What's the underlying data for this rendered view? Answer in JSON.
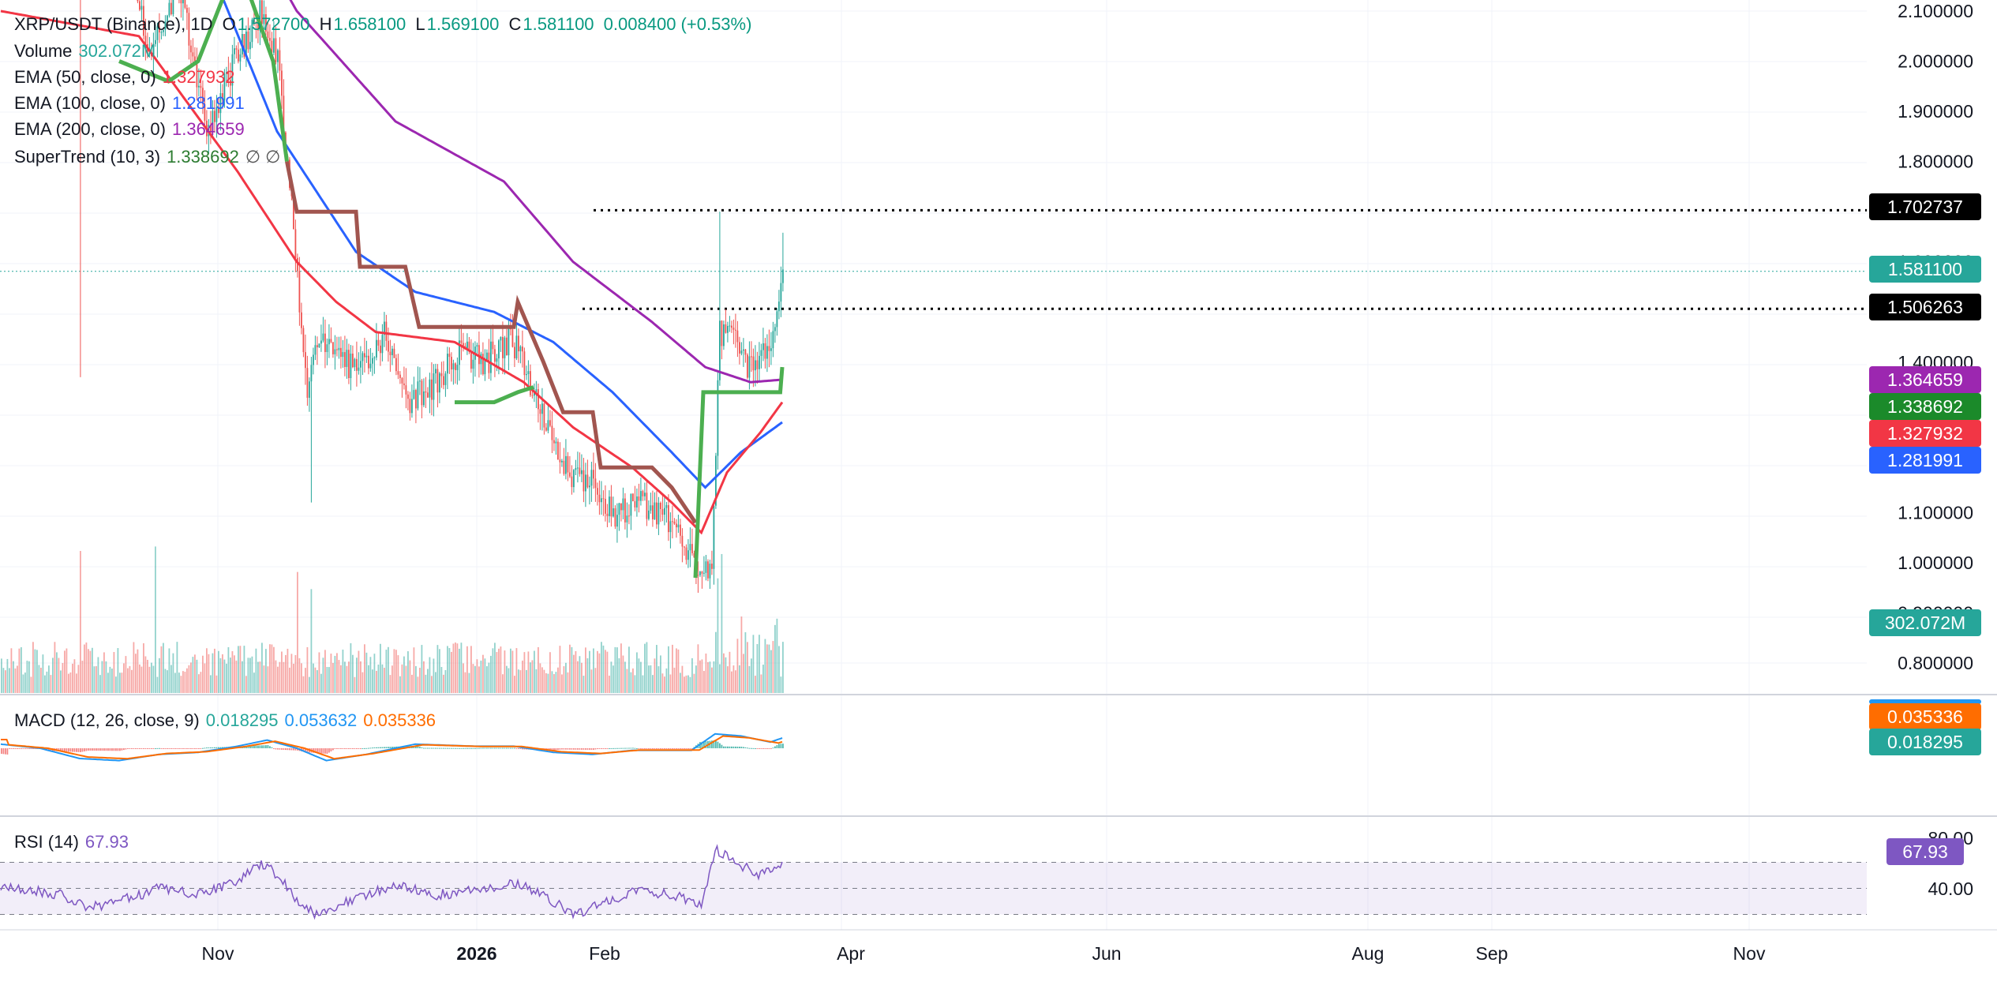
{
  "legend": {
    "symbol": "XRP/USDT (Binance), 1D",
    "open_label": "O",
    "open": "1.572700",
    "high_label": "H",
    "high": "1.658100",
    "low_label": "L",
    "low": "1.569100",
    "close_label": "C",
    "close": "1.581100",
    "change": "0.008400 (+0.53%)",
    "volume_label": "Volume",
    "volume": "302.072M",
    "ema50_label": "EMA (50, close, 0)",
    "ema50": "1.327932",
    "ema100_label": "EMA (100, close, 0)",
    "ema100": "1.281991",
    "ema200_label": "EMA (200, close, 0)",
    "ema200": "1.364659",
    "st_label": "SuperTrend (10, 3)",
    "st": "1.338692",
    "st_extra": "∅  ∅",
    "macd_label": "MACD (12, 26, close, 9)",
    "macd_hist": "0.018295",
    "macd_line": "0.053632",
    "macd_signal": "0.035336",
    "rsi_label": "RSI (14)",
    "rsi": "67.93"
  },
  "colors": {
    "up": "#26a69a",
    "down": "#ef5350",
    "ema50": "#f23645",
    "ema100": "#2962ff",
    "ema200": "#9c27b0",
    "st_up": "#4caf50",
    "st_down": "#a1554f",
    "macd": "#2196f3",
    "signal": "#ff6d00",
    "rsi": "#7e57c2"
  },
  "price_axis": {
    "ticks": [
      "2.100000",
      "2.000000",
      "1.900000",
      "1.800000",
      "1.600000",
      "1.400000",
      "1.100000",
      "1.000000",
      "0.900000",
      "0.800000"
    ]
  },
  "price_tags": {
    "resistance_high": "1.702737",
    "last_price": "1.581100",
    "resistance_low": "1.506263",
    "ema200": "1.364659",
    "supertrend": "1.338692",
    "ema50": "1.327932",
    "ema100": "1.281991",
    "volume": "302.072M",
    "macd_signal": "0.035336",
    "macd_hist": "0.018295",
    "rsi": "67.93"
  },
  "rsi_axis": {
    "ticks": [
      "80.00",
      "40.00"
    ]
  },
  "time_axis": {
    "labels": [
      "Nov",
      "2026",
      "Feb",
      "Apr",
      "Jun",
      "Aug",
      "Sep",
      "Nov"
    ]
  },
  "chart_data": {
    "type": "line",
    "title": "XRP/USDT (Binance), 1D",
    "price_ylim": [
      0.72,
      2.12
    ],
    "levels": [
      1.702737,
      1.506263
    ],
    "anchors_ema50": [
      [
        0,
        2.1
      ],
      [
        70,
        2.05
      ],
      [
        120,
        1.78
      ],
      [
        150,
        1.6
      ],
      [
        170,
        1.52
      ],
      [
        190,
        1.46
      ],
      [
        230,
        1.44
      ],
      [
        265,
        1.36
      ],
      [
        290,
        1.27
      ],
      [
        320,
        1.19
      ],
      [
        340,
        1.12
      ],
      [
        355,
        1.06
      ],
      [
        368,
        1.18
      ],
      [
        385,
        1.26
      ],
      [
        396,
        1.32
      ]
    ],
    "anchors_ema100": [
      [
        0,
        2.4
      ],
      [
        80,
        2.3
      ],
      [
        110,
        2.15
      ],
      [
        140,
        1.86
      ],
      [
        180,
        1.62
      ],
      [
        210,
        1.54
      ],
      [
        250,
        1.5
      ],
      [
        280,
        1.44
      ],
      [
        310,
        1.34
      ],
      [
        340,
        1.22
      ],
      [
        357,
        1.15
      ],
      [
        375,
        1.22
      ],
      [
        396,
        1.28
      ]
    ],
    "anchors_ema200": [
      [
        0,
        2.7
      ],
      [
        100,
        2.45
      ],
      [
        150,
        2.1
      ],
      [
        200,
        1.88
      ],
      [
        255,
        1.76
      ],
      [
        290,
        1.6
      ],
      [
        330,
        1.48
      ],
      [
        357,
        1.39
      ],
      [
        380,
        1.36
      ],
      [
        396,
        1.365
      ]
    ],
    "anchors_close": [
      [
        0,
        2.4
      ],
      [
        20,
        2.45
      ],
      [
        30,
        2.58
      ],
      [
        45,
        2.2
      ],
      [
        60,
        2.3
      ],
      [
        75,
        2.02
      ],
      [
        90,
        2.15
      ],
      [
        105,
        1.86
      ],
      [
        118,
        2.0
      ],
      [
        132,
        2.1
      ],
      [
        140,
        2.0
      ],
      [
        148,
        1.66
      ],
      [
        155,
        1.35
      ],
      [
        160,
        1.45
      ],
      [
        168,
        1.42
      ],
      [
        180,
        1.38
      ],
      [
        195,
        1.46
      ],
      [
        206,
        1.32
      ],
      [
        220,
        1.36
      ],
      [
        232,
        1.42
      ],
      [
        245,
        1.4
      ],
      [
        258,
        1.45
      ],
      [
        266,
        1.38
      ],
      [
        280,
        1.24
      ],
      [
        288,
        1.17
      ],
      [
        300,
        1.16
      ],
      [
        310,
        1.1
      ],
      [
        325,
        1.12
      ],
      [
        340,
        1.08
      ],
      [
        352,
        1.0
      ],
      [
        360,
        0.99
      ],
      [
        364,
        1.46
      ],
      [
        370,
        1.46
      ],
      [
        378,
        1.38
      ],
      [
        385,
        1.42
      ],
      [
        392,
        1.45
      ],
      [
        396,
        1.58
      ]
    ],
    "volume_last": "302.072M",
    "macd": {
      "line": 0.053632,
      "signal": 0.035336,
      "hist": 0.018295
    },
    "rsi": {
      "last": 67.93,
      "ylim": [
        30,
        80
      ]
    },
    "x_labels": [
      "Nov",
      "2026",
      "Feb",
      "Apr",
      "Jun",
      "Aug",
      "Sep",
      "Nov"
    ]
  }
}
